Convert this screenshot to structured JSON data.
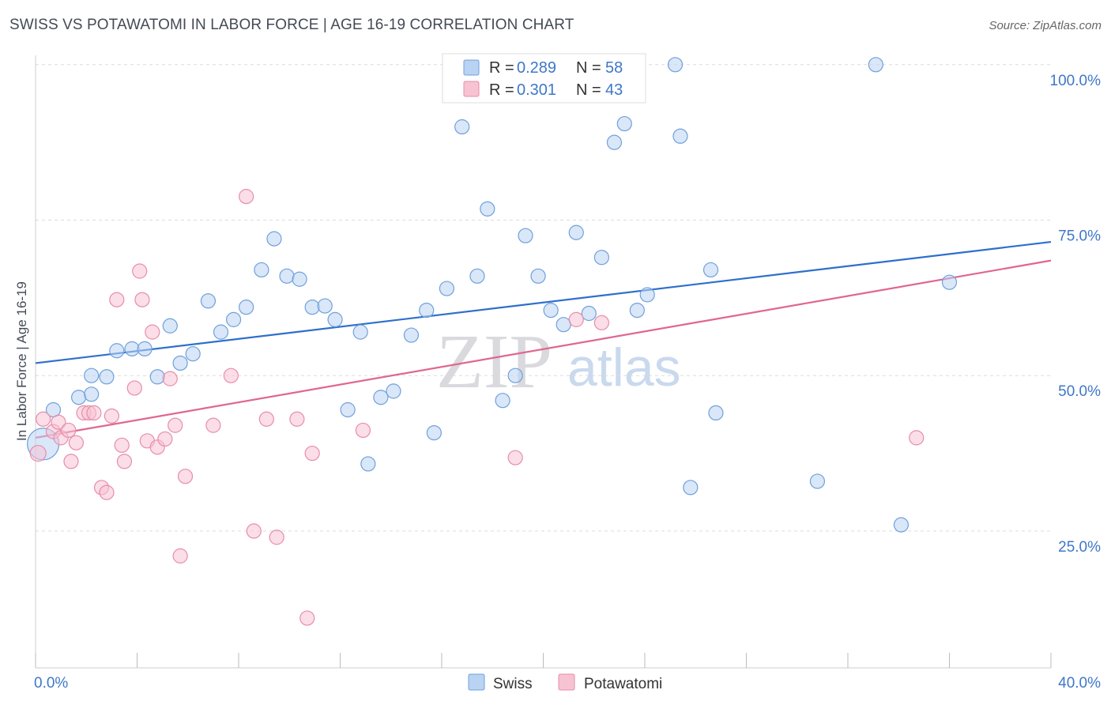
{
  "header": {
    "title": "SWISS VS POTAWATOMI IN LABOR FORCE | AGE 16-19 CORRELATION CHART",
    "source": "Source: ZipAtlas.com"
  },
  "watermark": {
    "zip": "ZIP",
    "atlas": "atlas"
  },
  "legend": {
    "rows": [
      {
        "r_label": "R =",
        "r_value": "0.289",
        "n_label": "N =",
        "n_value": "58"
      },
      {
        "r_label": "R =",
        "r_value": "0.301",
        "n_label": "N =",
        "n_value": "43"
      }
    ]
  },
  "colors": {
    "swiss_fill": "#b9d3f3",
    "swiss_stroke": "#6fa0dc",
    "swiss_line": "#2e6fcc",
    "pota_fill": "#f7c3d3",
    "pota_stroke": "#e78daa",
    "pota_line": "#e0668f",
    "grid": "#dcdcdc",
    "axis_text": "#3f77c8"
  },
  "chart_data": {
    "type": "scatter",
    "xlabel": "",
    "ylabel": "In Labor Force | Age 16-19",
    "xlim": [
      0,
      40
    ],
    "ylim": [
      3,
      101.5
    ],
    "x_tick_labels": [
      {
        "value": 0,
        "label": "0.0%"
      },
      {
        "value": 40,
        "label": "40.0%"
      }
    ],
    "x_minor_ticks": [
      0,
      4,
      8,
      12,
      16,
      20,
      24,
      28,
      32,
      36,
      40
    ],
    "y_ticks": [
      {
        "value": 25,
        "label": "25.0%"
      },
      {
        "value": 50,
        "label": "50.0%"
      },
      {
        "value": 75,
        "label": "75.0%"
      },
      {
        "value": 100,
        "label": "100.0%"
      }
    ],
    "grid": true,
    "legend_position": "top-center",
    "series": [
      {
        "name": "Swiss",
        "trend": {
          "x0": 0,
          "y0": 52.0,
          "x1": 40,
          "y1": 71.5
        },
        "points": [
          [
            0.3,
            39.0,
            20
          ],
          [
            0.7,
            44.5,
            9
          ],
          [
            1.7,
            46.5,
            9
          ],
          [
            2.2,
            47.0,
            9
          ],
          [
            2.2,
            50.0,
            9
          ],
          [
            2.8,
            49.8,
            9
          ],
          [
            3.2,
            54.0,
            9
          ],
          [
            3.8,
            54.3,
            9
          ],
          [
            4.3,
            54.3,
            9
          ],
          [
            4.8,
            49.8,
            9
          ],
          [
            5.3,
            58.0,
            9
          ],
          [
            5.7,
            52.0,
            9
          ],
          [
            6.2,
            53.5,
            9
          ],
          [
            6.8,
            62.0,
            9
          ],
          [
            7.3,
            57.0,
            9
          ],
          [
            7.8,
            59.0,
            9
          ],
          [
            8.3,
            61.0,
            9
          ],
          [
            8.9,
            67.0,
            9
          ],
          [
            9.4,
            72.0,
            9
          ],
          [
            9.9,
            66.0,
            9
          ],
          [
            10.4,
            65.5,
            9
          ],
          [
            10.9,
            61.0,
            9
          ],
          [
            11.4,
            61.2,
            9
          ],
          [
            11.8,
            59.0,
            9
          ],
          [
            12.3,
            44.5,
            9
          ],
          [
            12.8,
            57.0,
            9
          ],
          [
            13.1,
            35.8,
            9
          ],
          [
            13.6,
            46.5,
            9
          ],
          [
            14.1,
            47.5,
            9
          ],
          [
            14.8,
            56.5,
            9
          ],
          [
            15.4,
            60.5,
            9
          ],
          [
            15.7,
            40.8,
            9
          ],
          [
            16.2,
            64.0,
            9
          ],
          [
            16.8,
            90.0,
            9
          ],
          [
            17.4,
            66.0,
            9
          ],
          [
            17.8,
            76.8,
            9
          ],
          [
            18.4,
            46.0,
            9
          ],
          [
            18.9,
            50.0,
            9
          ],
          [
            19.3,
            72.5,
            9
          ],
          [
            19.8,
            66.0,
            9
          ],
          [
            20.3,
            60.5,
            9
          ],
          [
            20.8,
            58.2,
            9
          ],
          [
            21.3,
            73.0,
            9
          ],
          [
            21.8,
            60.0,
            9
          ],
          [
            22.3,
            69.0,
            9
          ],
          [
            22.8,
            87.5,
            9
          ],
          [
            23.2,
            90.5,
            9
          ],
          [
            23.7,
            60.5,
            9
          ],
          [
            24.1,
            63.0,
            9
          ],
          [
            25.2,
            100.0,
            9
          ],
          [
            25.4,
            88.5,
            9
          ],
          [
            25.8,
            32.0,
            9
          ],
          [
            26.6,
            67.0,
            9
          ],
          [
            26.8,
            44.0,
            9
          ],
          [
            30.8,
            33.0,
            9
          ],
          [
            33.1,
            100.0,
            9
          ],
          [
            34.1,
            26.0,
            9
          ],
          [
            36.0,
            65.0,
            9
          ]
        ]
      },
      {
        "name": "Potawatomi",
        "trend": {
          "x0": 0,
          "y0": 40.0,
          "x1": 40,
          "y1": 68.5
        },
        "points": [
          [
            0.1,
            37.5,
            10
          ],
          [
            0.3,
            43.0,
            9
          ],
          [
            0.7,
            41.0,
            9
          ],
          [
            0.9,
            42.5,
            9
          ],
          [
            1.0,
            40.0,
            9
          ],
          [
            1.3,
            41.2,
            9
          ],
          [
            1.4,
            36.2,
            9
          ],
          [
            1.6,
            39.2,
            9
          ],
          [
            1.9,
            44.0,
            9
          ],
          [
            2.1,
            44.0,
            9
          ],
          [
            2.3,
            44.0,
            9
          ],
          [
            2.6,
            32.0,
            9
          ],
          [
            2.8,
            31.2,
            9
          ],
          [
            3.0,
            43.5,
            9
          ],
          [
            3.2,
            62.2,
            9
          ],
          [
            3.4,
            38.8,
            9
          ],
          [
            3.5,
            36.2,
            9
          ],
          [
            3.9,
            48.0,
            9
          ],
          [
            4.1,
            66.8,
            9
          ],
          [
            4.2,
            62.2,
            9
          ],
          [
            4.4,
            39.5,
            9
          ],
          [
            4.6,
            57.0,
            9
          ],
          [
            4.8,
            38.5,
            9
          ],
          [
            5.1,
            39.8,
            9
          ],
          [
            5.3,
            49.5,
            9
          ],
          [
            5.5,
            42.0,
            9
          ],
          [
            5.7,
            21.0,
            9
          ],
          [
            5.9,
            33.8,
            9
          ],
          [
            7.0,
            42.0,
            9
          ],
          [
            7.7,
            50.0,
            9
          ],
          [
            8.3,
            78.8,
            9
          ],
          [
            8.6,
            25.0,
            9
          ],
          [
            9.1,
            43.0,
            9
          ],
          [
            9.5,
            24.0,
            9
          ],
          [
            10.3,
            43.0,
            9
          ],
          [
            10.7,
            11.0,
            9
          ],
          [
            10.9,
            37.5,
            9
          ],
          [
            12.9,
            41.2,
            9
          ],
          [
            18.9,
            36.8,
            9
          ],
          [
            21.2,
            100.5,
            9
          ],
          [
            21.3,
            59.0,
            9
          ],
          [
            22.3,
            58.5,
            9
          ],
          [
            34.7,
            40.0,
            9
          ]
        ]
      }
    ]
  }
}
